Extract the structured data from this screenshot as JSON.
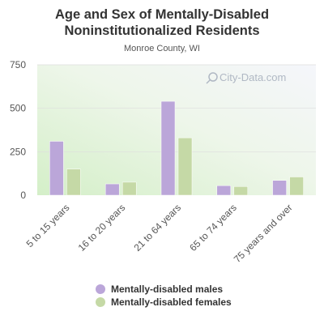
{
  "title_line1": "Age and Sex of Mentally-Disabled",
  "title_line2": "Noninstitutionalized Residents",
  "subtitle": "Monroe County, WI",
  "watermark": "City-Data.com",
  "colors": {
    "males": "#bba6d9",
    "females": "#c5d9a6",
    "grid": "#dddddd",
    "axis_text": "#555555"
  },
  "chart_data": {
    "type": "bar",
    "categories": [
      "5 to 15 years",
      "16 to 20 years",
      "21 to 64 years",
      "65 to 74 years",
      "75 years and over"
    ],
    "series": [
      {
        "name": "Mentally-disabled males",
        "values": [
          310,
          65,
          540,
          55,
          85
        ]
      },
      {
        "name": "Mentally-disabled females",
        "values": [
          150,
          75,
          330,
          50,
          105
        ]
      }
    ],
    "yticks": [
      "750",
      "500",
      "250",
      "0"
    ],
    "ylim": [
      0,
      750
    ],
    "grid": true,
    "legend_position": "bottom"
  }
}
